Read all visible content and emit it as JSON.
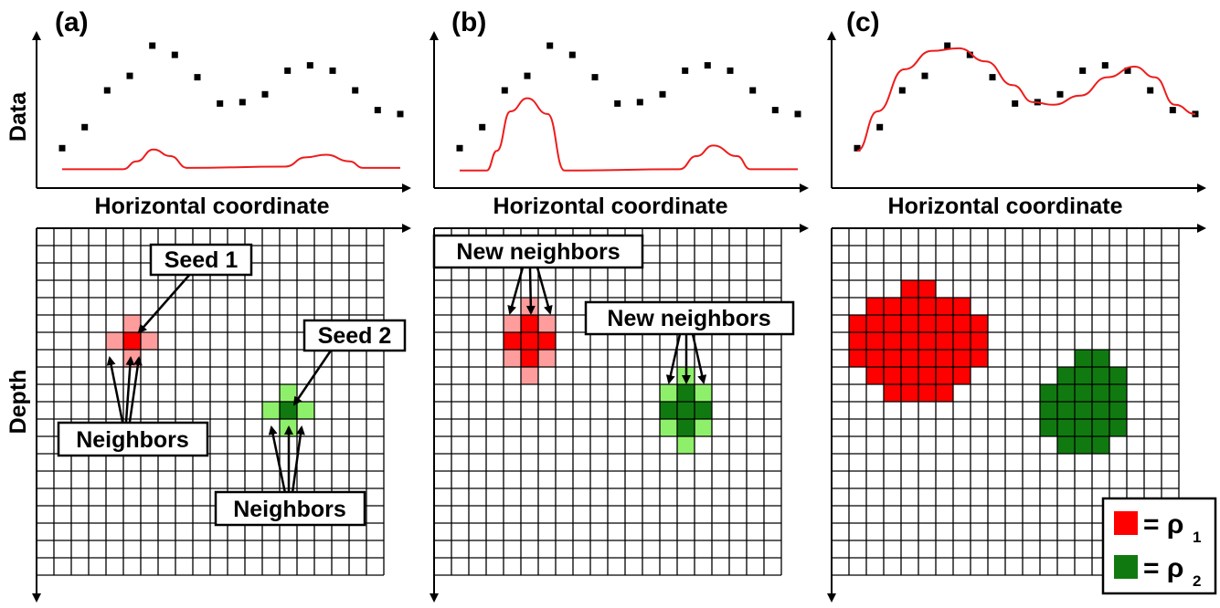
{
  "figure": {
    "y_label_data": "Data",
    "y_label_depth": "Depth",
    "colors": {
      "rho1": "#ff0000",
      "rho2": "#107a10",
      "seed1_light": "#ff9c9c",
      "seed2_light": "#8ef06a",
      "curve": "#ee1c1c",
      "grid": "#000000"
    },
    "panels": [
      {
        "label": "(a)",
        "x_label": "Horizontal coordinate",
        "annotations": [
          "Seed 1",
          "Seed 2",
          "Neighbors",
          "Neighbors"
        ]
      },
      {
        "label": "(b)",
        "x_label": "Horizontal coordinate",
        "annotations": [
          "New neighbors",
          "New neighbors"
        ]
      },
      {
        "label": "(c)",
        "x_label": "Horizontal coordinate",
        "annotations": []
      }
    ],
    "legend": {
      "items": [
        {
          "symbol": "= ρ",
          "sub": "1",
          "color_key": "rho1"
        },
        {
          "symbol": "= ρ",
          "sub": "2",
          "color_key": "rho2"
        }
      ]
    }
  },
  "chart_data": [
    {
      "type": "scatter",
      "panel": "(a)",
      "xlabel": "Horizontal coordinate",
      "ylabel": "Data",
      "observed": [
        0.22,
        0.38,
        0.66,
        0.77,
        1.0,
        0.93,
        0.76,
        0.56,
        0.57,
        0.63,
        0.81,
        0.85,
        0.81,
        0.66,
        0.51,
        0.48
      ],
      "predicted_curve": [
        [
          0.0,
          0.06
        ],
        [
          0.18,
          0.06
        ],
        [
          0.22,
          0.12
        ],
        [
          0.27,
          0.21
        ],
        [
          0.32,
          0.16
        ],
        [
          0.37,
          0.07
        ],
        [
          0.66,
          0.08
        ],
        [
          0.72,
          0.15
        ],
        [
          0.78,
          0.17
        ],
        [
          0.85,
          0.12
        ],
        [
          0.89,
          0.07
        ],
        [
          1.0,
          0.07
        ]
      ]
    },
    {
      "type": "scatter",
      "panel": "(b)",
      "xlabel": "Horizontal coordinate",
      "ylabel": "Data",
      "observed": [
        0.22,
        0.38,
        0.66,
        0.77,
        1.0,
        0.93,
        0.76,
        0.56,
        0.57,
        0.63,
        0.81,
        0.85,
        0.81,
        0.66,
        0.51,
        0.48
      ],
      "predicted_curve": [
        [
          0.0,
          0.05
        ],
        [
          0.08,
          0.05
        ],
        [
          0.11,
          0.2
        ],
        [
          0.15,
          0.5
        ],
        [
          0.2,
          0.6
        ],
        [
          0.26,
          0.48
        ],
        [
          0.31,
          0.05
        ],
        [
          0.65,
          0.06
        ],
        [
          0.7,
          0.16
        ],
        [
          0.75,
          0.24
        ],
        [
          0.82,
          0.16
        ],
        [
          0.86,
          0.06
        ],
        [
          1.0,
          0.06
        ]
      ]
    },
    {
      "type": "scatter",
      "panel": "(c)",
      "xlabel": "Horizontal coordinate",
      "ylabel": "Data",
      "observed": [
        0.22,
        0.38,
        0.66,
        0.77,
        1.0,
        0.93,
        0.76,
        0.56,
        0.57,
        0.63,
        0.81,
        0.85,
        0.81,
        0.66,
        0.51,
        0.48
      ],
      "predicted_curve": [
        [
          0.0,
          0.2
        ],
        [
          0.06,
          0.5
        ],
        [
          0.14,
          0.82
        ],
        [
          0.22,
          0.96
        ],
        [
          0.3,
          0.98
        ],
        [
          0.38,
          0.88
        ],
        [
          0.46,
          0.7
        ],
        [
          0.52,
          0.57
        ],
        [
          0.58,
          0.55
        ],
        [
          0.66,
          0.62
        ],
        [
          0.74,
          0.76
        ],
        [
          0.82,
          0.84
        ],
        [
          0.88,
          0.76
        ],
        [
          0.94,
          0.55
        ],
        [
          1.0,
          0.48
        ]
      ]
    }
  ]
}
